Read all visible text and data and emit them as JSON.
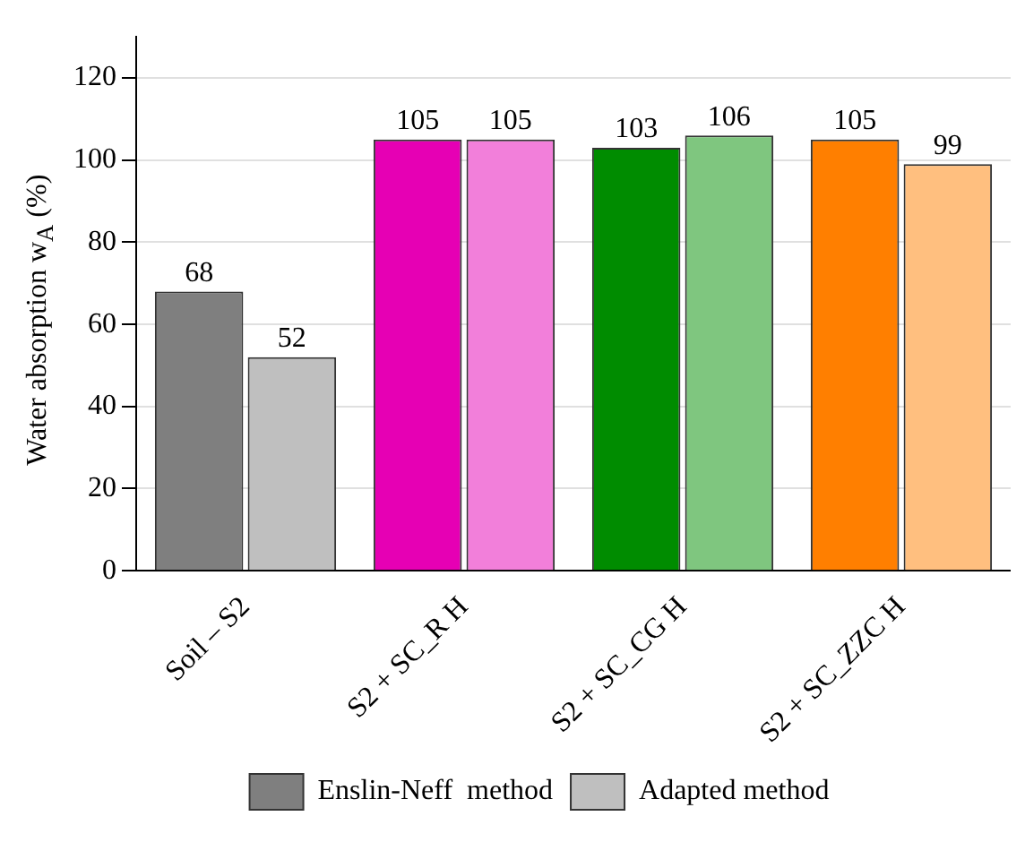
{
  "chart_data": {
    "type": "bar",
    "ylabel": "Water absorption w$_{A}$ (%)",
    "categories": [
      "Soil – S2",
      "S2 + SC_R H",
      "S2 + SC_CG H",
      "S2 + SC_ZZC H"
    ],
    "series": [
      {
        "name": "Enslin-Neff  method",
        "color": "#7f7f7f",
        "colors": [
          "#7f7f7f",
          "#e600b4",
          "#008c00",
          "#ff7f00"
        ],
        "values": [
          68,
          105,
          103,
          105
        ]
      },
      {
        "name": "Adapted method",
        "color": "#bfbfbf",
        "colors": [
          "#bfbfbf",
          "#f27fda",
          "#7fc67f",
          "#ffbf7f"
        ],
        "values": [
          52,
          105,
          106,
          99
        ]
      }
    ],
    "ylim": [
      0,
      130
    ],
    "yticks": [
      0,
      20,
      40,
      60,
      80,
      100,
      120
    ],
    "grid": "y",
    "legend": "bottom",
    "data_labels": true
  }
}
